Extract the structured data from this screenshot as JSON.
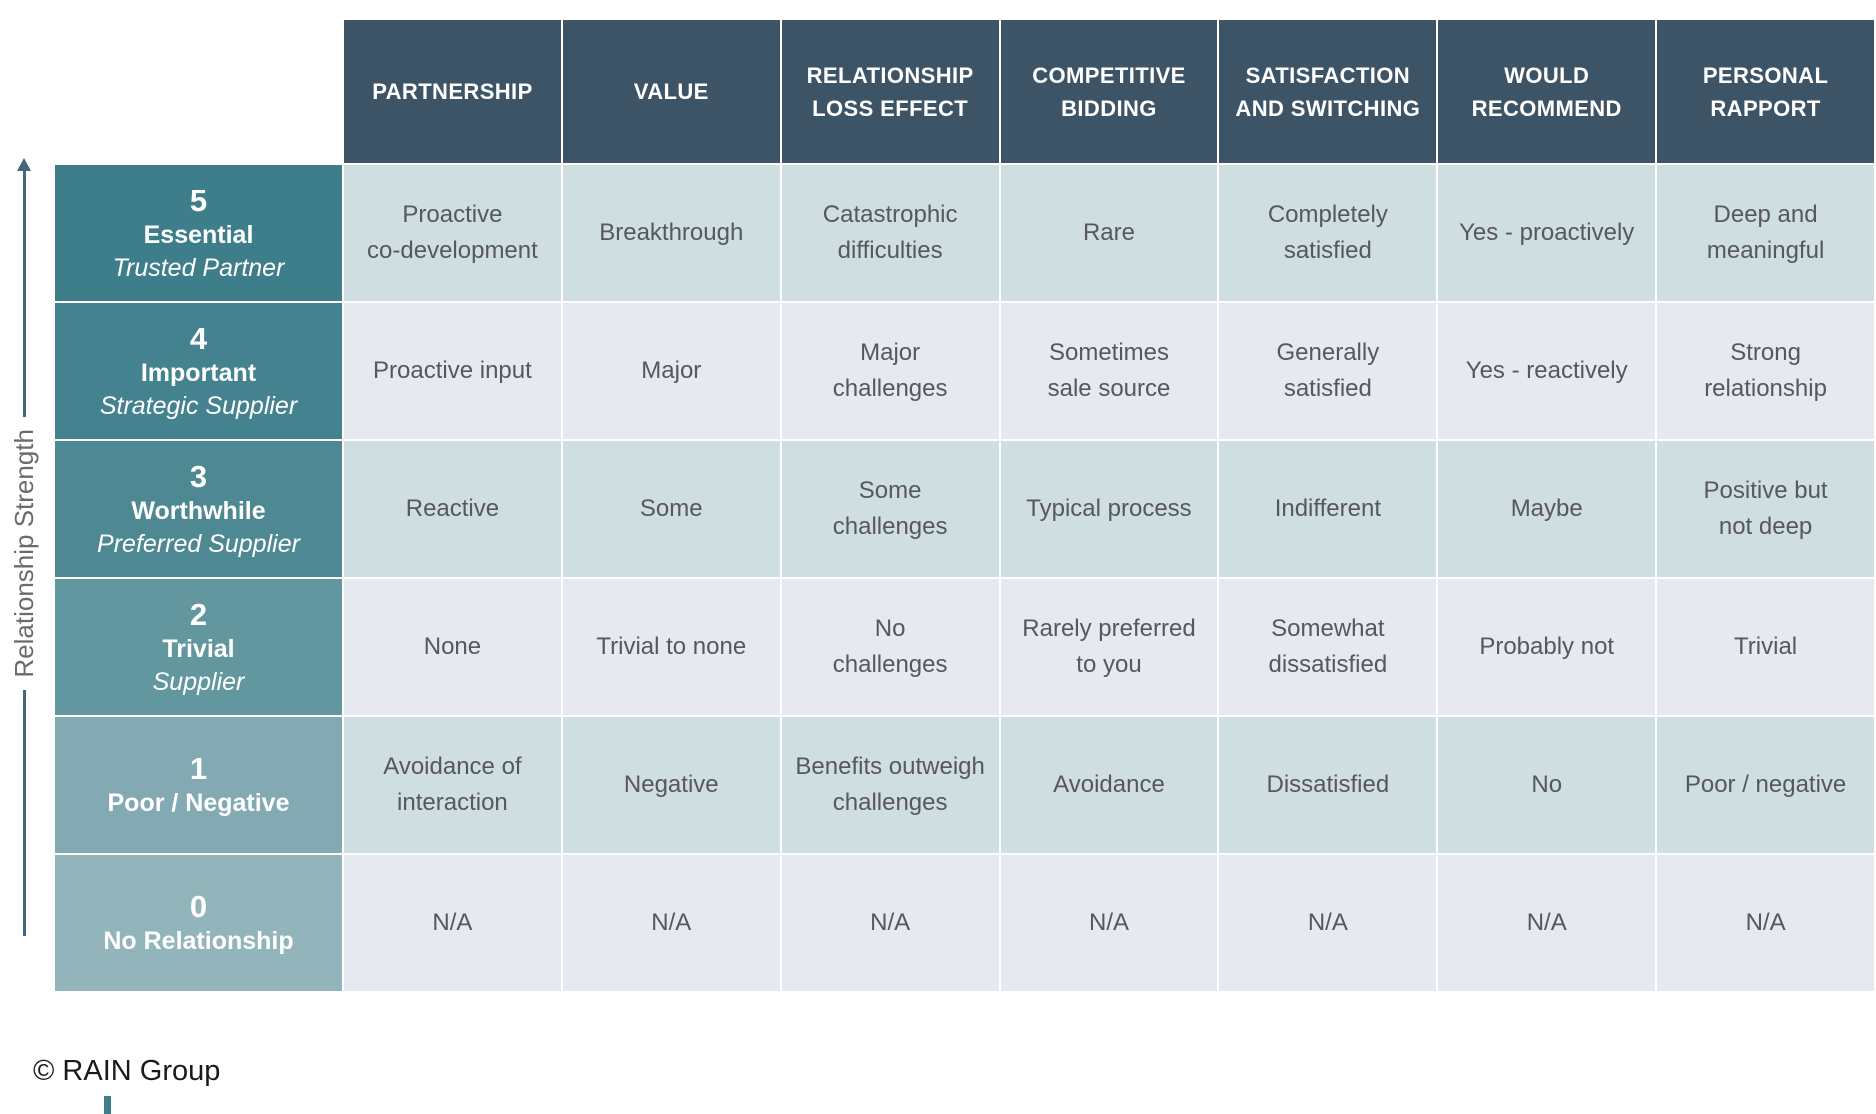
{
  "axis": {
    "label": "Relationship Strength"
  },
  "matrix": {
    "columns": [
      "PARTNERSHIP",
      "VALUE",
      "RELATIONSHIP\nLOSS EFFECT",
      "COMPETITIVE\nBIDDING",
      "SATISFACTION\nAND SWITCHING",
      "WOULD\nRECOMMEND",
      "PERSONAL\nRAPPORT"
    ],
    "rows": [
      {
        "score": "5",
        "name": "Essential",
        "subtitle": "Trusted Partner",
        "cells": [
          "Proactive\nco-development",
          "Breakthrough",
          "Catastrophic\ndifficulties",
          "Rare",
          "Completely\nsatisfied",
          "Yes - proactively",
          "Deep and\nmeaningful"
        ]
      },
      {
        "score": "4",
        "name": "Important",
        "subtitle": "Strategic Supplier",
        "cells": [
          "Proactive input",
          "Major",
          "Major\nchallenges",
          "Sometimes\nsale source",
          "Generally\nsatisfied",
          "Yes - reactively",
          "Strong\nrelationship"
        ]
      },
      {
        "score": "3",
        "name": "Worthwhile",
        "subtitle": "Preferred Supplier",
        "cells": [
          "Reactive",
          "Some",
          "Some\nchallenges",
          "Typical process",
          "Indifferent",
          "Maybe",
          "Positive but\nnot deep"
        ]
      },
      {
        "score": "2",
        "name": "Trivial",
        "subtitle": "Supplier",
        "cells": [
          "None",
          "Trivial to none",
          "No\nchallenges",
          "Rarely preferred\nto you",
          "Somewhat\ndissatisfied",
          "Probably not",
          "Trivial"
        ]
      },
      {
        "score": "1",
        "name": "Poor / Negative",
        "subtitle": "",
        "cells": [
          "Avoidance of\ninteraction",
          "Negative",
          "Benefits outweigh\nchallenges",
          "Avoidance",
          "Dissatisfied",
          "No",
          "Poor / negative"
        ]
      },
      {
        "score": "0",
        "name": "No Relationship",
        "subtitle": "",
        "cells": [
          "N/A",
          "N/A",
          "N/A",
          "N/A",
          "N/A",
          "N/A",
          "N/A"
        ]
      }
    ]
  },
  "footer": {
    "copyright": "© RAIN Group"
  },
  "colors": {
    "header_bg": "#3d5466",
    "label_bg": [
      "#3e7e8b",
      "#43828e",
      "#4e8893",
      "#63979f",
      "#83a9b2",
      "#92b4bb"
    ],
    "body_row_bg": [
      "#cfdee1",
      "#e6e9f0",
      "#cfdee1",
      "#e6e9f0",
      "#cfdee1",
      "#e6e9f0"
    ],
    "cell_text": "#56575f",
    "axis": "#44687b",
    "footer_text": "#1b1b1b"
  }
}
